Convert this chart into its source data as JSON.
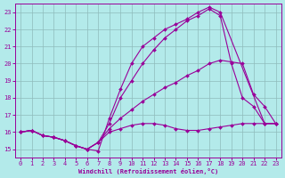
{
  "xlabel": "Windchill (Refroidissement éolien,°C)",
  "xlim": [
    -0.5,
    23.5
  ],
  "ylim": [
    14.5,
    23.5
  ],
  "xticks": [
    0,
    1,
    2,
    3,
    4,
    5,
    6,
    7,
    8,
    9,
    10,
    11,
    12,
    13,
    14,
    15,
    16,
    17,
    18,
    19,
    20,
    21,
    22,
    23
  ],
  "yticks": [
    15,
    16,
    17,
    18,
    19,
    20,
    21,
    22,
    23
  ],
  "bg_color": "#b3eaea",
  "line_color": "#990099",
  "grid_color": "#8fbcbc",
  "lines": [
    {
      "x": [
        0,
        1,
        2,
        3,
        4,
        5,
        6,
        7,
        8,
        9,
        10,
        11,
        12,
        13,
        14,
        15,
        16,
        17,
        18,
        19,
        20,
        21,
        22,
        23
      ],
      "y": [
        16.0,
        16.1,
        15.8,
        15.7,
        15.5,
        15.2,
        15.0,
        15.4,
        16.0,
        16.2,
        16.4,
        16.5,
        16.5,
        16.4,
        16.2,
        16.1,
        16.1,
        16.2,
        16.3,
        16.4,
        16.5,
        16.5,
        16.5,
        16.5
      ]
    },
    {
      "x": [
        0,
        1,
        2,
        3,
        4,
        5,
        6,
        7,
        8,
        9,
        10,
        11,
        12,
        13,
        14,
        15,
        16,
        17,
        18,
        19,
        20,
        21,
        22,
        23
      ],
      "y": [
        16.0,
        16.1,
        15.8,
        15.7,
        15.5,
        15.2,
        15.0,
        15.4,
        16.2,
        16.8,
        17.3,
        17.8,
        18.2,
        18.6,
        18.9,
        19.3,
        19.6,
        20.0,
        20.2,
        20.1,
        20.0,
        18.2,
        17.5,
        16.5
      ]
    },
    {
      "x": [
        0,
        1,
        2,
        3,
        4,
        5,
        6,
        7,
        8,
        9,
        10,
        11,
        12,
        13,
        14,
        15,
        16,
        17,
        18,
        19,
        20,
        21,
        22,
        23
      ],
      "y": [
        16.0,
        16.1,
        15.8,
        15.7,
        15.5,
        15.2,
        15.0,
        15.4,
        16.5,
        18.0,
        19.0,
        20.0,
        20.8,
        21.5,
        22.0,
        22.5,
        22.8,
        23.2,
        22.8,
        20.0,
        18.0,
        17.5,
        16.5,
        16.5
      ]
    },
    {
      "x": [
        0,
        1,
        2,
        3,
        4,
        5,
        6,
        7,
        8,
        9,
        10,
        11,
        12,
        13,
        14,
        15,
        16,
        17,
        18,
        22,
        23
      ],
      "y": [
        16.0,
        16.1,
        15.8,
        15.7,
        15.5,
        15.2,
        15.0,
        14.9,
        16.8,
        18.5,
        20.0,
        21.0,
        21.5,
        22.0,
        22.3,
        22.6,
        23.0,
        23.3,
        23.0,
        16.5,
        16.5
      ]
    }
  ]
}
